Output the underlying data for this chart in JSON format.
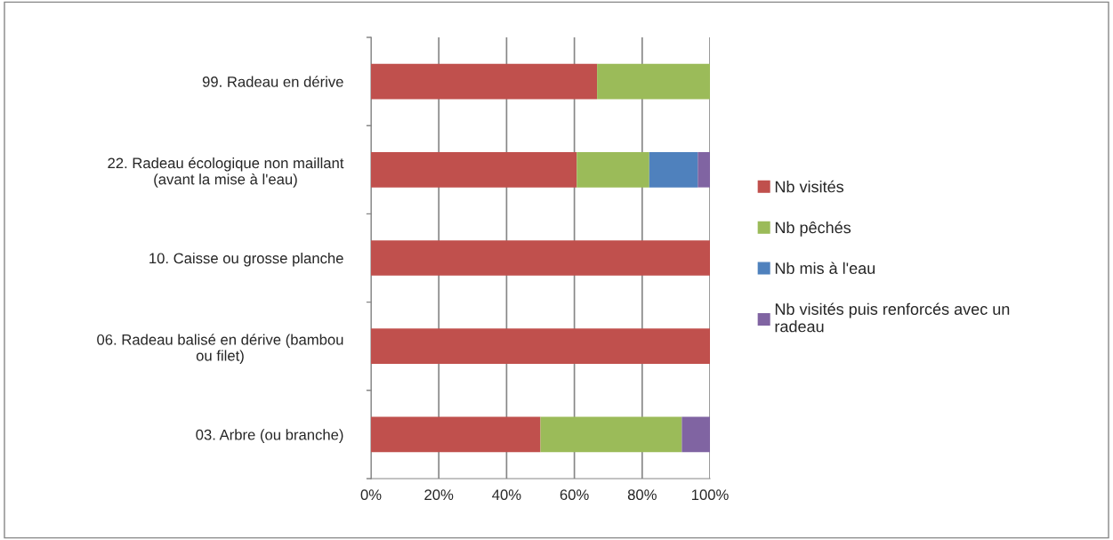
{
  "chart_data": {
    "type": "bar",
    "orientation": "horizontal",
    "stacked": true,
    "categories": [
      "99. Radeau en dérive",
      "22. Radeau écologique non maillant\n(avant la mise à l'eau)",
      "10. Caisse ou grosse planche",
      "06. Radeau balisé en dérive (bambou\nou filet)",
      "03. Arbre (ou branche)"
    ],
    "series": [
      {
        "name": "Nb visités",
        "color": "#c0504d",
        "values": [
          66.7,
          60.7,
          100,
          100,
          50.0
        ]
      },
      {
        "name": "Nb pêchés",
        "color": "#9bbb59",
        "values": [
          33.3,
          21.4,
          0,
          0,
          41.7
        ]
      },
      {
        "name": "Nb mis à l'eau",
        "color": "#4f81bd",
        "values": [
          0,
          14.3,
          0,
          0,
          0
        ]
      },
      {
        "name": "Nb visités puis renforcés avec un\nradeau",
        "color": "#8064a2",
        "values": [
          0,
          3.6,
          0,
          0,
          8.3
        ]
      }
    ],
    "xlim": [
      0,
      100
    ],
    "xticks": [
      {
        "value": 0,
        "label": "0%"
      },
      {
        "value": 20,
        "label": "20%"
      },
      {
        "value": 40,
        "label": "40%"
      },
      {
        "value": 60,
        "label": "60%"
      },
      {
        "value": 80,
        "label": "80%"
      },
      {
        "value": 100,
        "label": "100%"
      }
    ],
    "grid": "x",
    "legend": "right"
  }
}
